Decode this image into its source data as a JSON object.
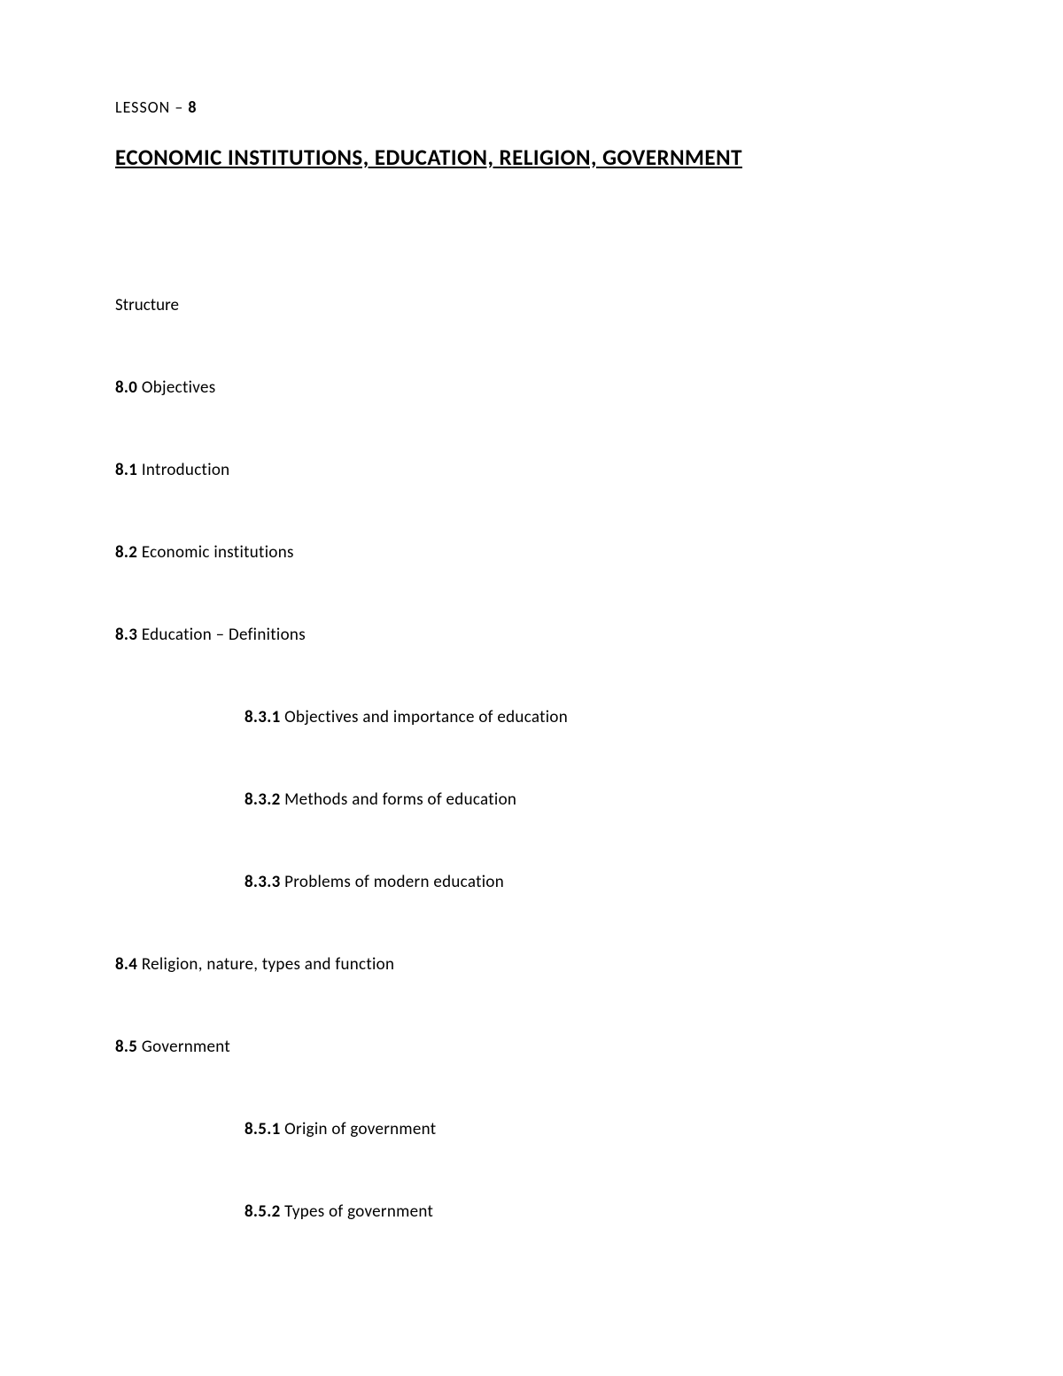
{
  "lesson": {
    "prefix": "LESSON – ",
    "number": "8"
  },
  "title": "ECONOMIC INSTITUTIONS, EDUCATION, RELIGION, GOVERNMENT",
  "structure_label": "Structure",
  "toc": [
    {
      "num": "8.0",
      "text": " Objectives",
      "indent": 0
    },
    {
      "num": "8.1",
      "text": " Introduction",
      "indent": 0
    },
    {
      "num": "8.2",
      "text": " Economic institutions",
      "indent": 0
    },
    {
      "num": "8.3",
      "text": " Education – Definitions",
      "indent": 0
    },
    {
      "num": "8.3.1",
      "text": " Objectives and importance of education",
      "indent": 1
    },
    {
      "num": "8.3.2",
      "text": " Methods and forms of education",
      "indent": 1
    },
    {
      "num": "8.3.3",
      "text": " Problems of modern education",
      "indent": 1
    },
    {
      "num": "8.4",
      "text": " Religion, nature, types and function",
      "indent": 0
    },
    {
      "num": "8.5",
      "text": " Government",
      "indent": 0
    },
    {
      "num": "8.5.1",
      "text": " Origin of government",
      "indent": 1
    },
    {
      "num": "8.5.2",
      "text": " Types of government",
      "indent": 1
    }
  ],
  "colors": {
    "text": "#000000",
    "background": "#ffffff"
  },
  "typography": {
    "font_family": "Calibri",
    "lesson_label_size": 18,
    "title_size": 25,
    "body_size": 19
  }
}
